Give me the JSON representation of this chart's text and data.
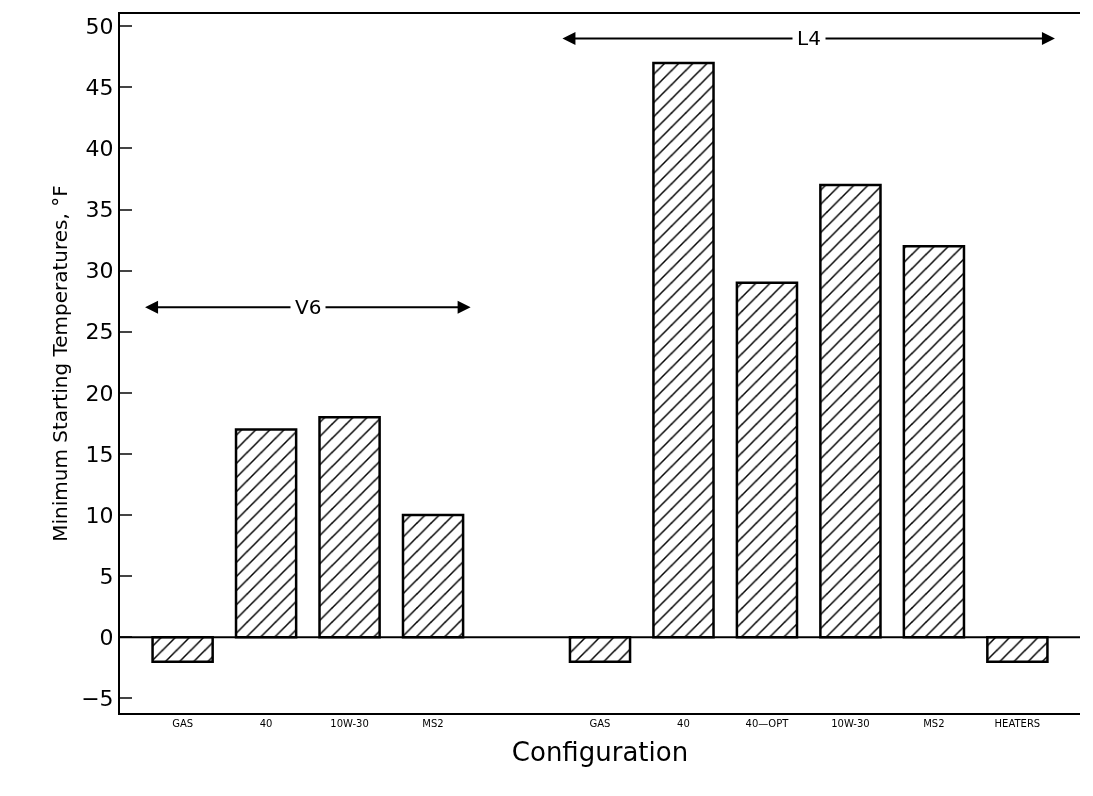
{
  "chart_data": {
    "type": "bar",
    "xlabel": "Configuration",
    "ylabel": "Minimum Starting Temperatures, °F",
    "categories": [
      "GAS",
      "40",
      "10W-30",
      "MS2",
      null,
      "GAS",
      "40",
      "40—OPT",
      "10W-30",
      "MS2",
      "HEATERS"
    ],
    "values": [
      -2,
      17,
      18,
      10,
      null,
      -2,
      47,
      29,
      37,
      32,
      -2
    ],
    "color": "#000000",
    "ref_lines": [
      {
        "axis": "y",
        "value": 0,
        "color": "#000000"
      }
    ],
    "ylim": [
      -6.2,
      51
    ],
    "yticks": [
      -5,
      0,
      5,
      10,
      15,
      20,
      25,
      30,
      35,
      40,
      45,
      50
    ],
    "annotations": [
      {
        "text": "V6",
        "y": 27
      },
      {
        "text": "L4",
        "y": 49
      }
    ]
  }
}
